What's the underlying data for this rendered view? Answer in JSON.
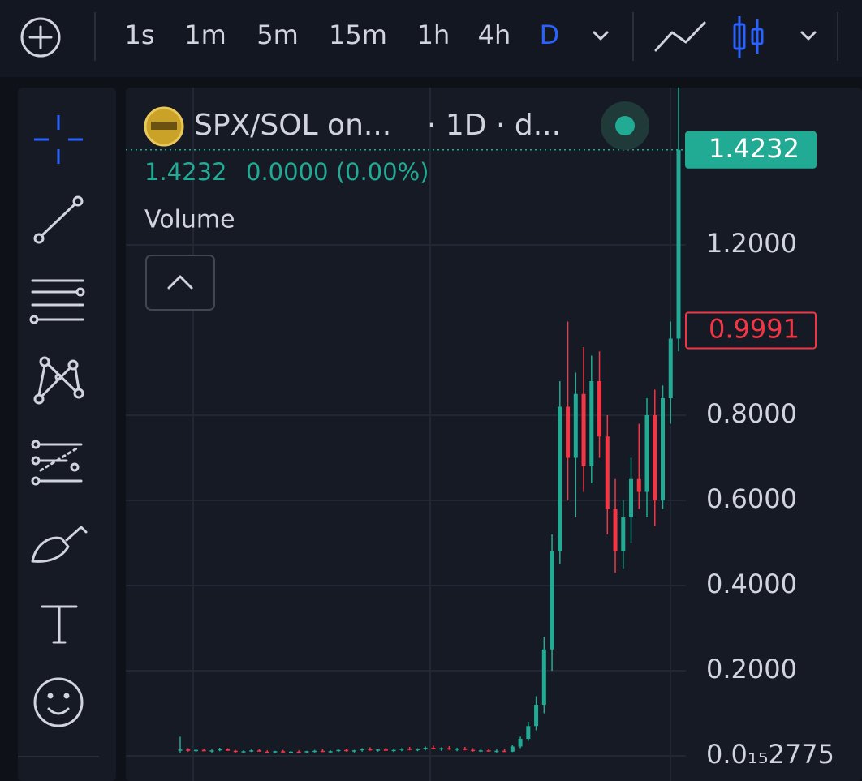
{
  "toolbar": {
    "intervals": [
      "1s",
      "1m",
      "5m",
      "15m",
      "1h",
      "4h",
      "D"
    ],
    "active_interval_index": 6
  },
  "legend": {
    "symbol": "SPX/SOL on...",
    "details": "· 1D · d...",
    "last": "1.4232",
    "change": "0.0000 (0.00%)",
    "indicator": "Volume"
  },
  "chart_data": {
    "type": "candlestick",
    "up_color": "#22ab94",
    "down_color": "#f23645",
    "ylim": [
      -0.059,
      1.5695
    ],
    "yticks": [
      {
        "value": 2.775e-16,
        "label": "0.0₁₅2775"
      },
      {
        "value": 0.2,
        "label": "0.2000"
      },
      {
        "value": 0.4,
        "label": "0.4000"
      },
      {
        "value": 0.6,
        "label": "0.6000"
      },
      {
        "value": 0.8,
        "label": "0.8000"
      },
      {
        "value": 1.2,
        "label": "1.2000"
      }
    ],
    "grid": true,
    "price_tags": [
      {
        "value": 1.4232,
        "label": "1.4232",
        "color": "#22ab94",
        "filled": true
      },
      {
        "value": 0.9991,
        "label": "0.9991",
        "color": "#f23645",
        "filled": false
      }
    ],
    "candles": [
      [
        0.012,
        0.045,
        0.008,
        0.015
      ],
      [
        0.015,
        0.018,
        0.01,
        0.012
      ],
      [
        0.012,
        0.016,
        0.009,
        0.014
      ],
      [
        0.014,
        0.017,
        0.011,
        0.011
      ],
      [
        0.011,
        0.015,
        0.008,
        0.013
      ],
      [
        0.013,
        0.019,
        0.011,
        0.016
      ],
      [
        0.016,
        0.018,
        0.012,
        0.012
      ],
      [
        0.012,
        0.014,
        0.008,
        0.01
      ],
      [
        0.01,
        0.013,
        0.007,
        0.011
      ],
      [
        0.011,
        0.015,
        0.009,
        0.013
      ],
      [
        0.013,
        0.016,
        0.01,
        0.01
      ],
      [
        0.01,
        0.013,
        0.007,
        0.009
      ],
      [
        0.009,
        0.012,
        0.006,
        0.011
      ],
      [
        0.011,
        0.014,
        0.008,
        0.008
      ],
      [
        0.008,
        0.012,
        0.006,
        0.01
      ],
      [
        0.01,
        0.013,
        0.007,
        0.009
      ],
      [
        0.009,
        0.012,
        0.006,
        0.011
      ],
      [
        0.011,
        0.014,
        0.008,
        0.012
      ],
      [
        0.012,
        0.016,
        0.009,
        0.01
      ],
      [
        0.01,
        0.013,
        0.007,
        0.011
      ],
      [
        0.011,
        0.015,
        0.009,
        0.014
      ],
      [
        0.014,
        0.017,
        0.01,
        0.011
      ],
      [
        0.011,
        0.014,
        0.008,
        0.013
      ],
      [
        0.013,
        0.018,
        0.01,
        0.016
      ],
      [
        0.016,
        0.02,
        0.012,
        0.013
      ],
      [
        0.013,
        0.017,
        0.01,
        0.015
      ],
      [
        0.015,
        0.019,
        0.012,
        0.012
      ],
      [
        0.012,
        0.016,
        0.009,
        0.014
      ],
      [
        0.014,
        0.018,
        0.011,
        0.017
      ],
      [
        0.017,
        0.021,
        0.013,
        0.014
      ],
      [
        0.014,
        0.018,
        0.011,
        0.016
      ],
      [
        0.016,
        0.022,
        0.013,
        0.019
      ],
      [
        0.019,
        0.024,
        0.015,
        0.016
      ],
      [
        0.016,
        0.02,
        0.012,
        0.018
      ],
      [
        0.018,
        0.023,
        0.014,
        0.015
      ],
      [
        0.015,
        0.019,
        0.011,
        0.017
      ],
      [
        0.017,
        0.021,
        0.013,
        0.014
      ],
      [
        0.014,
        0.018,
        0.01,
        0.012
      ],
      [
        0.012,
        0.016,
        0.009,
        0.013
      ],
      [
        0.013,
        0.017,
        0.01,
        0.011
      ],
      [
        0.011,
        0.015,
        0.008,
        0.012
      ],
      [
        0.012,
        0.016,
        0.009,
        0.01
      ],
      [
        0.01,
        0.025,
        0.009,
        0.022
      ],
      [
        0.022,
        0.045,
        0.018,
        0.04
      ],
      [
        0.04,
        0.08,
        0.035,
        0.07
      ],
      [
        0.07,
        0.14,
        0.06,
        0.12
      ],
      [
        0.12,
        0.28,
        0.1,
        0.25
      ],
      [
        0.25,
        0.52,
        0.2,
        0.48
      ],
      [
        0.48,
        0.88,
        0.45,
        0.82
      ],
      [
        0.82,
        1.02,
        0.6,
        0.7
      ],
      [
        0.7,
        0.9,
        0.56,
        0.85
      ],
      [
        0.85,
        0.96,
        0.62,
        0.68
      ],
      [
        0.68,
        0.94,
        0.64,
        0.88
      ],
      [
        0.88,
        0.95,
        0.7,
        0.75
      ],
      [
        0.75,
        0.8,
        0.52,
        0.58
      ],
      [
        0.58,
        0.65,
        0.43,
        0.48
      ],
      [
        0.48,
        0.6,
        0.44,
        0.56
      ],
      [
        0.56,
        0.7,
        0.5,
        0.65
      ],
      [
        0.65,
        0.78,
        0.58,
        0.62
      ],
      [
        0.62,
        0.84,
        0.56,
        0.8
      ],
      [
        0.8,
        0.86,
        0.54,
        0.6
      ],
      [
        0.6,
        0.87,
        0.58,
        0.84
      ],
      [
        0.84,
        1.02,
        0.78,
        0.98
      ],
      [
        0.98,
        1.57,
        0.95,
        1.4232
      ]
    ]
  }
}
